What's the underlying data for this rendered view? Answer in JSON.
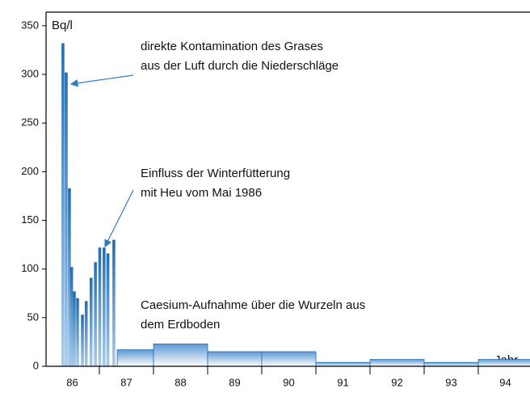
{
  "chart_data": {
    "type": "bar",
    "y_label": "Bq/l",
    "x_label": "Jahr",
    "categories": [
      "86",
      "87",
      "88",
      "89",
      "90",
      "91",
      "92",
      "93",
      "94"
    ],
    "xlim": [
      86,
      95
    ],
    "xticks": [
      87,
      88,
      89,
      90,
      91,
      92,
      93,
      94
    ],
    "ylim": [
      0,
      364
    ],
    "yticks": [
      0,
      50,
      100,
      150,
      200,
      250,
      300,
      350
    ],
    "color": "#1f6db3",
    "monthly": {
      "x": [
        86.33,
        86.39,
        86.45,
        86.49,
        86.54,
        86.6,
        86.69,
        86.76,
        86.85,
        86.93,
        87.01,
        87.09,
        87.16,
        87.27
      ],
      "values": [
        332,
        302,
        183,
        102,
        77,
        70,
        53,
        67,
        91,
        107,
        122,
        122,
        116,
        130
      ]
    },
    "yearly": {
      "bins": [
        87.33,
        88,
        89,
        90,
        91,
        92,
        93,
        94,
        95
      ],
      "values": [
        17,
        23,
        15,
        15,
        4,
        7,
        4,
        7
      ]
    },
    "annotations": [
      {
        "lines": [
          "direkte Kontamination des Grases",
          "aus der Luft durch die Niederschläge"
        ]
      },
      {
        "lines": [
          "Einfluss der Winterfütterung",
          "mit Heu vom Mai 1986"
        ]
      },
      {
        "lines": [
          "Caesium-Aufnahme über die Wurzeln aus",
          "dem Erdboden"
        ]
      }
    ]
  }
}
